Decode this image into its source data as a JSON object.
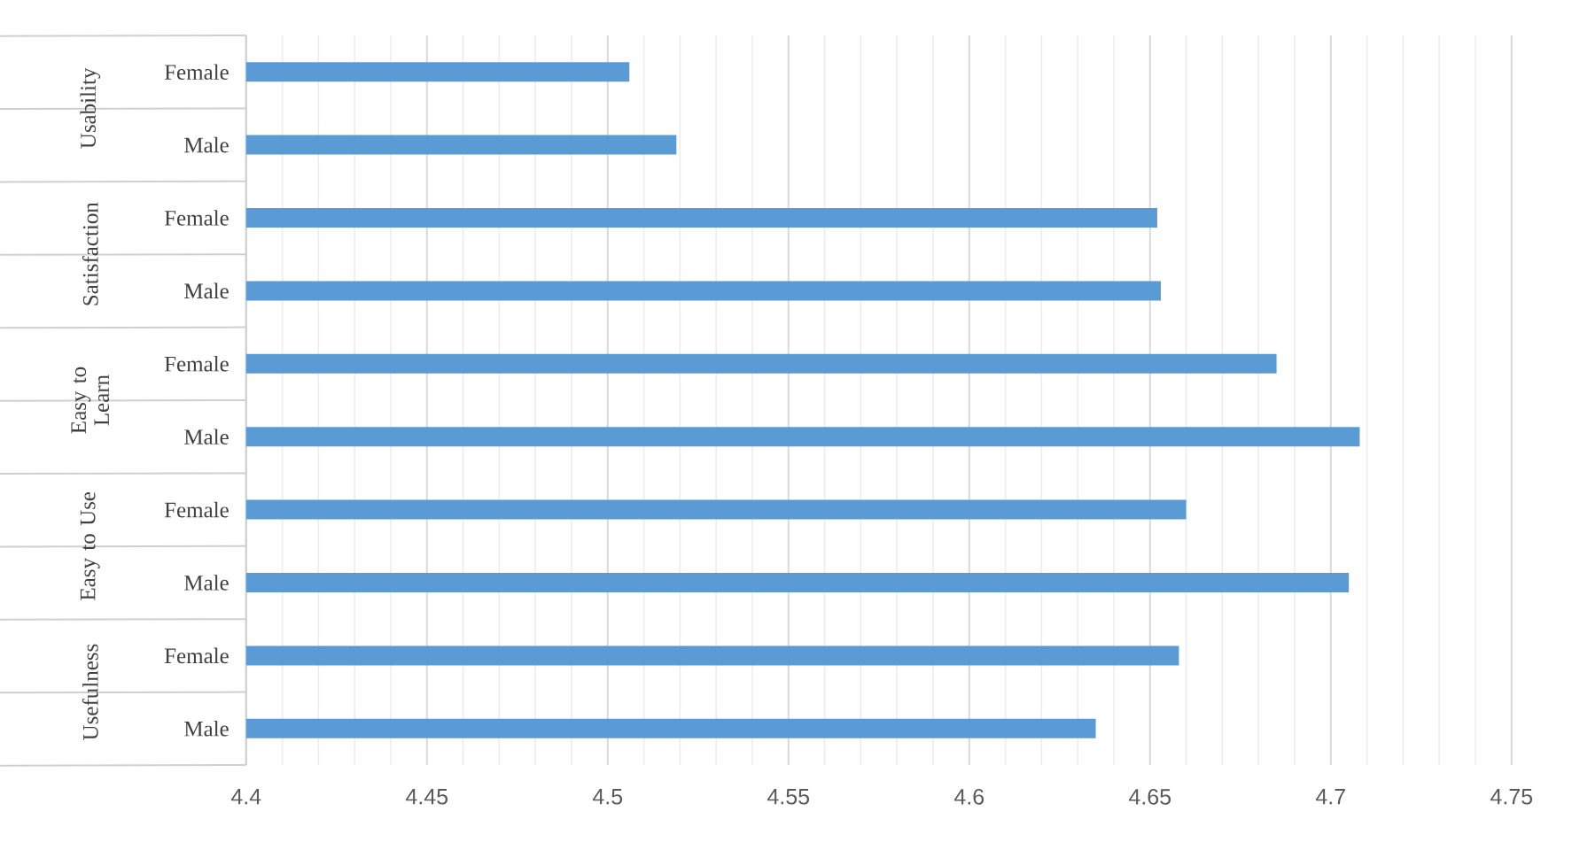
{
  "chart_data": {
    "type": "bar",
    "orientation": "horizontal",
    "categories": [
      "Female",
      "Male",
      "Female",
      "Male",
      "Female",
      "Male",
      "Female",
      "Male",
      "Female",
      "Male"
    ],
    "values": [
      4.506,
      4.519,
      4.652,
      4.653,
      4.685,
      4.708,
      4.66,
      4.705,
      4.658,
      4.635
    ],
    "color": "#5b9bd5",
    "xlim": [
      4.4,
      4.75
    ],
    "xticks": [
      4.4,
      4.45,
      4.5,
      4.55,
      4.6,
      4.65,
      4.7,
      4.75
    ],
    "grid": "x",
    "annotations": [
      "Usability",
      "Satisfaction",
      "Easy to Learn",
      "Easy to Use",
      "Usefulness"
    ]
  }
}
